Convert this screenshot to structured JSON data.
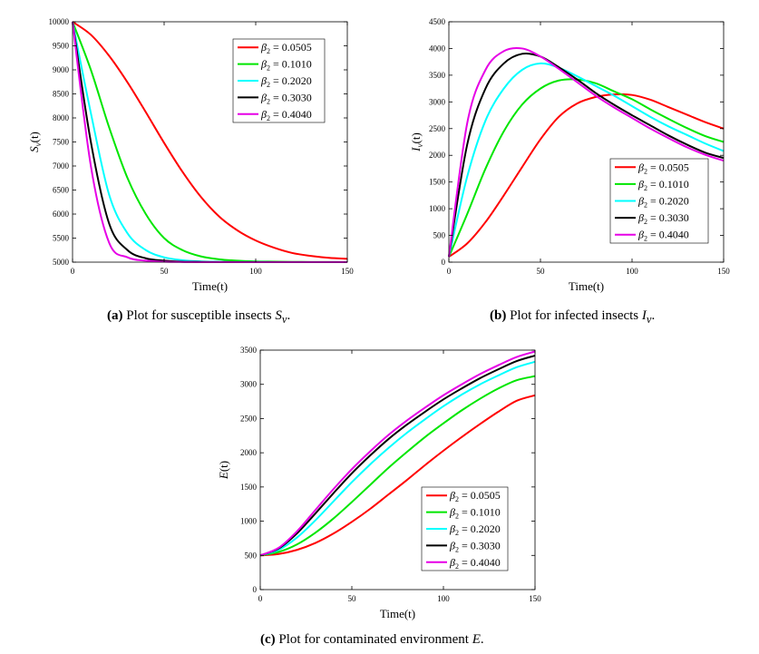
{
  "colors": {
    "series": [
      "#ff0000",
      "#00e600",
      "#00ffff",
      "#000000",
      "#e600e6"
    ]
  },
  "captions": {
    "a": {
      "label": "(a)",
      "text": "Plot for susceptible insects",
      "symbol": "S",
      "sub": "v",
      "end": "."
    },
    "b": {
      "label": "(b)",
      "text": "Plot for infected insects",
      "symbol": "I",
      "sub": "v",
      "end": "."
    },
    "c": {
      "label": "(c)",
      "text": "Plot for contaminated environment",
      "symbol": "E",
      "sub": "",
      "end": "."
    }
  },
  "chart_data": [
    {
      "id": "a",
      "type": "line",
      "xlabel": "Time(t)",
      "ylabel": {
        "sym": "S",
        "sub": "v",
        "arg": "(t)"
      },
      "xlim": [
        0,
        150
      ],
      "ylim": [
        5000,
        10000
      ],
      "xticks": [
        0,
        50,
        100,
        150
      ],
      "yticks": [
        5000,
        5500,
        6000,
        6500,
        7000,
        7500,
        8000,
        8500,
        9000,
        9500,
        10000
      ],
      "legend_position": "top-right",
      "x": [
        0,
        10,
        20,
        30,
        40,
        50,
        60,
        70,
        80,
        90,
        100,
        110,
        120,
        130,
        140,
        150
      ],
      "series": [
        {
          "name": "β2 = 0.0505",
          "beta": "0.0505",
          "values": [
            10000,
            9730,
            9290,
            8740,
            8120,
            7480,
            6880,
            6360,
            5950,
            5660,
            5450,
            5300,
            5190,
            5130,
            5090,
            5070
          ]
        },
        {
          "name": "β2 = 0.1010",
          "beta": "0.1010",
          "values": [
            10000,
            9000,
            7800,
            6750,
            6000,
            5500,
            5250,
            5120,
            5060,
            5030,
            5015,
            5010,
            5005,
            5003,
            5002,
            5001
          ]
        },
        {
          "name": "β2 = 0.2020",
          "beta": "0.2020",
          "values": [
            10000,
            8100,
            6400,
            5600,
            5250,
            5100,
            5040,
            5015,
            5007,
            5003,
            5002,
            5001,
            5000,
            5000,
            5000,
            5000
          ]
        },
        {
          "name": "β2 = 0.3030",
          "beta": "0.3030",
          "values": [
            10000,
            7500,
            5800,
            5250,
            5080,
            5030,
            5010,
            5005,
            5002,
            5001,
            5000,
            5000,
            5000,
            5000,
            5000,
            5000
          ]
        },
        {
          "name": "β2 = 0.4040",
          "beta": "0.4040",
          "values": [
            10000,
            7000,
            5400,
            5100,
            5030,
            5010,
            5003,
            5001,
            5000,
            5000,
            5000,
            5000,
            5000,
            5000,
            5000,
            5000
          ]
        }
      ]
    },
    {
      "id": "b",
      "type": "line",
      "xlabel": "Time(t)",
      "ylabel": {
        "sym": "I",
        "sub": "v",
        "arg": "(t)"
      },
      "xlim": [
        0,
        150
      ],
      "ylim": [
        0,
        4500
      ],
      "xticks": [
        0,
        50,
        100,
        150
      ],
      "yticks": [
        0,
        500,
        1000,
        1500,
        2000,
        2500,
        3000,
        3500,
        4000,
        4500
      ],
      "legend_position": "bottom-right",
      "x": [
        0,
        10,
        20,
        30,
        40,
        50,
        60,
        70,
        80,
        90,
        100,
        110,
        120,
        130,
        140,
        150
      ],
      "series": [
        {
          "name": "β2 = 0.0505",
          "beta": "0.0505",
          "values": [
            100,
            350,
            750,
            1250,
            1780,
            2300,
            2720,
            2970,
            3090,
            3140,
            3130,
            3040,
            2900,
            2760,
            2620,
            2500
          ]
        },
        {
          "name": "β2 = 0.1010",
          "beta": "0.1010",
          "values": [
            100,
            900,
            1750,
            2450,
            2950,
            3250,
            3400,
            3420,
            3350,
            3200,
            3050,
            2860,
            2680,
            2510,
            2360,
            2250
          ]
        },
        {
          "name": "β2 = 0.2020",
          "beta": "0.2020",
          "values": [
            100,
            1600,
            2650,
            3250,
            3600,
            3720,
            3640,
            3480,
            3300,
            3120,
            2920,
            2720,
            2540,
            2380,
            2220,
            2080
          ]
        },
        {
          "name": "β2 = 0.3030",
          "beta": "0.3030",
          "values": [
            100,
            2200,
            3250,
            3720,
            3900,
            3850,
            3650,
            3420,
            3170,
            2950,
            2750,
            2560,
            2370,
            2200,
            2050,
            1950
          ]
        },
        {
          "name": "β2 = 0.4040",
          "beta": "0.4040",
          "values": [
            100,
            2600,
            3600,
            3950,
            4000,
            3850,
            3620,
            3370,
            3120,
            2900,
            2700,
            2500,
            2320,
            2150,
            2010,
            1900
          ]
        }
      ]
    },
    {
      "id": "c",
      "type": "line",
      "xlabel": "Time(t)",
      "ylabel": {
        "sym": "E",
        "sub": "",
        "arg": "(t)"
      },
      "xlim": [
        0,
        150
      ],
      "ylim": [
        0,
        3500
      ],
      "xticks": [
        0,
        50,
        100,
        150
      ],
      "yticks": [
        0,
        500,
        1000,
        1500,
        2000,
        2500,
        3000,
        3500
      ],
      "legend_position": "bottom-right",
      "x": [
        0,
        10,
        20,
        30,
        40,
        50,
        60,
        70,
        80,
        90,
        100,
        110,
        120,
        130,
        140,
        150
      ],
      "series": [
        {
          "name": "β2 = 0.0505",
          "beta": "0.0505",
          "values": [
            500,
            520,
            580,
            680,
            820,
            990,
            1180,
            1390,
            1600,
            1820,
            2030,
            2230,
            2420,
            2600,
            2760,
            2840
          ]
        },
        {
          "name": "β2 = 0.1010",
          "beta": "0.1010",
          "values": [
            500,
            550,
            660,
            830,
            1040,
            1280,
            1530,
            1780,
            2010,
            2230,
            2430,
            2620,
            2790,
            2940,
            3060,
            3120
          ]
        },
        {
          "name": "β2 = 0.2020",
          "beta": "0.2020",
          "values": [
            500,
            580,
            760,
            1010,
            1290,
            1570,
            1830,
            2070,
            2290,
            2490,
            2680,
            2850,
            3000,
            3130,
            3250,
            3330
          ]
        },
        {
          "name": "β2 = 0.3030",
          "beta": "0.3030",
          "values": [
            500,
            600,
            820,
            1110,
            1410,
            1700,
            1960,
            2200,
            2410,
            2600,
            2780,
            2940,
            3090,
            3220,
            3340,
            3420
          ]
        },
        {
          "name": "β2 = 0.4040",
          "beta": "0.4040",
          "values": [
            500,
            610,
            850,
            1160,
            1470,
            1760,
            2020,
            2260,
            2470,
            2660,
            2840,
            3000,
            3150,
            3280,
            3400,
            3480
          ]
        }
      ]
    }
  ]
}
